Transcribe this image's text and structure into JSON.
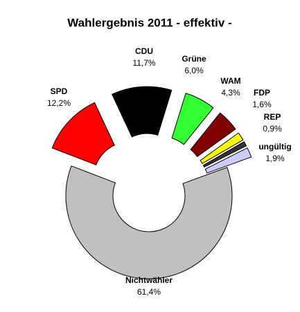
{
  "chart_data": {
    "type": "donut",
    "title": "Wahlergebnis 2011 - effektiv -",
    "categories": [
      "SPD",
      "CDU",
      "Grüne",
      "WAM",
      "FDP",
      "REP",
      "ungültig",
      "Nichtwähler"
    ],
    "values": [
      12.2,
      11.7,
      6.0,
      4.3,
      1.6,
      0.9,
      1.9,
      61.4
    ],
    "value_labels": [
      "12,2%",
      "11,7%",
      "6,0%",
      "4,3%",
      "1,6%",
      "0,9%",
      "1,9%",
      "61,4%"
    ],
    "colors": [
      "#ff0000",
      "#000000",
      "#33ff33",
      "#800000",
      "#ffff00",
      "#333333",
      "#ccccff",
      "#c0c0c0"
    ]
  }
}
